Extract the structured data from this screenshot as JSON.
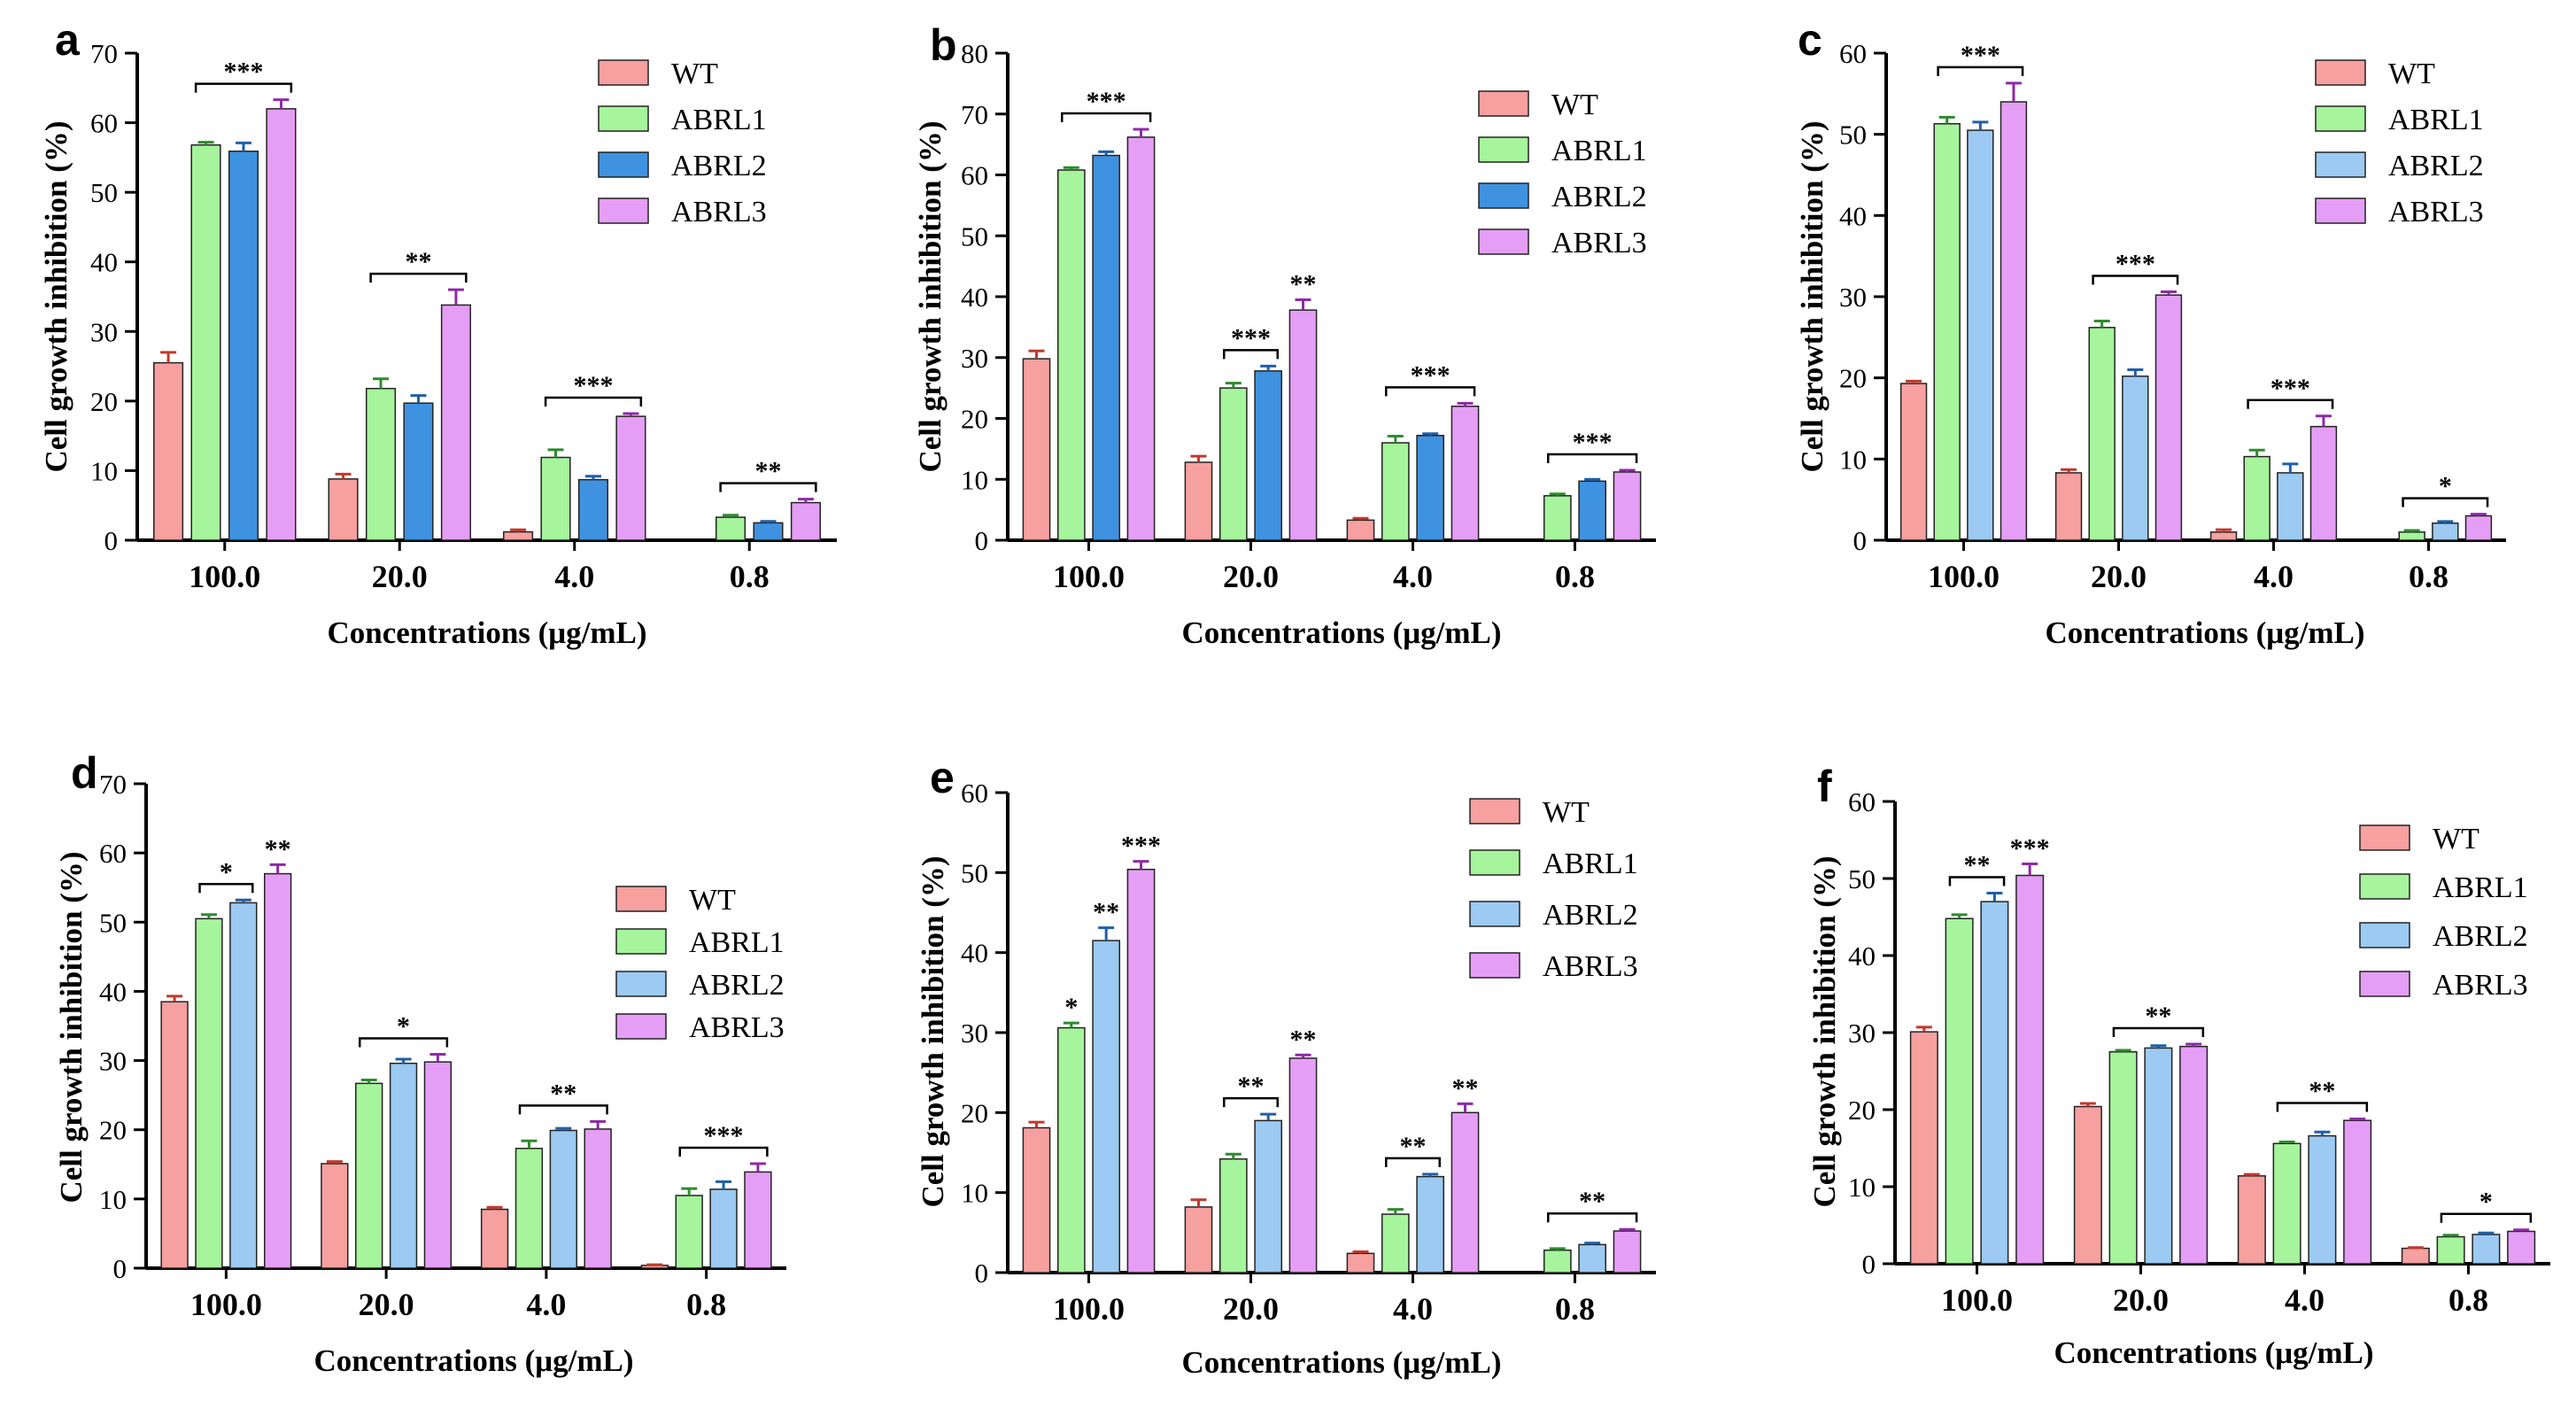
{
  "figure": {
    "colors": {
      "WT": "#f6a0a0",
      "ABRL1": "#a6f49c",
      "ABRL2_dark": "#3f92e0",
      "ABRL2_light": "#9ccaf2",
      "ABRL3": "#e59ef5",
      "WT_err": "#c0392b",
      "ABRL1_err": "#2e8b2e",
      "ABRL2_err": "#1f5fa8",
      "ABRL3_err": "#8e2aa6"
    }
  },
  "chart_data": [
    {
      "panel": "a",
      "type": "bar",
      "categories": [
        "100.0",
        "20.0",
        "4.0",
        "0.8"
      ],
      "xlabel": "Concentrations (μg/mL)",
      "ylabel": "Cell growth inhibition (%)",
      "ylim": [
        0,
        70
      ],
      "yticks": [
        "0",
        "10",
        "20",
        "30",
        "40",
        "50",
        "60",
        "70"
      ],
      "legend": [
        "WT",
        "ABRL1",
        "ABRL2",
        "ABRL3"
      ],
      "abrl2_style": "dark",
      "series": [
        {
          "name": "WT",
          "values": [
            25.5,
            8.8,
            1.2,
            0
          ],
          "errors": [
            1.5,
            0.7,
            0.3,
            0
          ]
        },
        {
          "name": "ABRL1",
          "values": [
            56.8,
            21.8,
            11.9,
            3.3
          ],
          "errors": [
            0.4,
            1.4,
            1.1,
            0.3
          ]
        },
        {
          "name": "ABRL2",
          "values": [
            55.9,
            19.7,
            8.7,
            2.5
          ],
          "errors": [
            1.2,
            1.1,
            0.5,
            0.2
          ]
        },
        {
          "name": "ABRL3",
          "values": [
            62.0,
            33.8,
            17.8,
            5.4
          ],
          "errors": [
            1.3,
            2.2,
            0.4,
            0.5
          ]
        }
      ],
      "significance": [
        "***",
        "**",
        "***",
        "**"
      ]
    },
    {
      "panel": "b",
      "type": "bar",
      "categories": [
        "100.0",
        "20.0",
        "4.0",
        "0.8"
      ],
      "xlabel": "Concentrations (μg/mL)",
      "ylabel": "Cell growth inhibition (%)",
      "ylim": [
        0,
        80
      ],
      "yticks": [
        "0",
        "10",
        "20",
        "30",
        "40",
        "50",
        "60",
        "70",
        "80"
      ],
      "legend": [
        "WT",
        "ABRL1",
        "ABRL2",
        "ABRL3"
      ],
      "abrl2_style": "dark",
      "series": [
        {
          "name": "WT",
          "values": [
            29.8,
            12.8,
            3.3,
            0
          ],
          "errors": [
            1.3,
            1.0,
            0.3,
            0
          ]
        },
        {
          "name": "ABRL1",
          "values": [
            60.8,
            25.0,
            16.0,
            7.3
          ],
          "errors": [
            0.4,
            0.8,
            1.1,
            0.3
          ]
        },
        {
          "name": "ABRL2",
          "values": [
            63.2,
            27.8,
            17.2,
            9.7
          ],
          "errors": [
            0.6,
            0.8,
            0.3,
            0.3
          ]
        },
        {
          "name": "ABRL3",
          "values": [
            66.2,
            37.8,
            22.0,
            11.2
          ],
          "errors": [
            1.3,
            1.7,
            0.5,
            0.3
          ]
        }
      ],
      "significance": [
        "***",
        "***",
        "***",
        "***"
      ],
      "significance_extra": [
        {
          "category_index": 1,
          "label": "**"
        }
      ]
    },
    {
      "panel": "c",
      "type": "bar",
      "categories": [
        "100.0",
        "20.0",
        "4.0",
        "0.8"
      ],
      "xlabel": "Concentrations (μg/mL)",
      "ylabel": "Cell growth inhibition (%)",
      "ylim": [
        0,
        60
      ],
      "yticks": [
        "0",
        "10",
        "20",
        "30",
        "40",
        "50",
        "60"
      ],
      "legend": [
        "WT",
        "ABRL1",
        "ABRL2",
        "ABRL3"
      ],
      "abrl2_style": "light",
      "series": [
        {
          "name": "WT",
          "values": [
            19.3,
            8.3,
            1.0,
            0
          ],
          "errors": [
            0.3,
            0.4,
            0.3,
            0
          ]
        },
        {
          "name": "ABRL1",
          "values": [
            51.3,
            26.2,
            10.3,
            1.0
          ],
          "errors": [
            0.8,
            0.8,
            0.8,
            0.2
          ]
        },
        {
          "name": "ABRL2",
          "values": [
            50.5,
            20.2,
            8.3,
            2.1
          ],
          "errors": [
            1.0,
            0.8,
            1.1,
            0.2
          ]
        },
        {
          "name": "ABRL3",
          "values": [
            54.0,
            30.2,
            14.0,
            3.0
          ],
          "errors": [
            2.3,
            0.4,
            1.3,
            0.2
          ]
        }
      ],
      "significance": [
        "***",
        "***",
        "***",
        "*"
      ]
    },
    {
      "panel": "d",
      "type": "bar",
      "categories": [
        "100.0",
        "20.0",
        "4.0",
        "0.8"
      ],
      "xlabel": "Concentrations (μg/mL)",
      "ylabel": "Cell growth inhibition (%)",
      "ylim": [
        0,
        70
      ],
      "yticks": [
        "0",
        "10",
        "20",
        "30",
        "40",
        "50",
        "60",
        "70"
      ],
      "legend": [
        "WT",
        "ABRL1",
        "ABRL2",
        "ABRL3"
      ],
      "abrl2_style": "light",
      "series": [
        {
          "name": "WT",
          "values": [
            38.5,
            15.1,
            8.5,
            0.4
          ],
          "errors": [
            0.8,
            0.3,
            0.3,
            0.1
          ]
        },
        {
          "name": "ABRL1",
          "values": [
            50.5,
            26.7,
            17.3,
            10.5
          ],
          "errors": [
            0.6,
            0.5,
            1.1,
            1.0
          ]
        },
        {
          "name": "ABRL2",
          "values": [
            52.8,
            29.6,
            19.9,
            11.4
          ],
          "errors": [
            0.4,
            0.6,
            0.3,
            1.1
          ]
        },
        {
          "name": "ABRL3",
          "values": [
            57.0,
            29.8,
            20.1,
            13.9
          ],
          "errors": [
            1.3,
            1.1,
            1.1,
            1.2
          ]
        }
      ],
      "significance": [
        "*",
        "*",
        "**",
        "***"
      ],
      "significance_extra": [
        {
          "category_index": 0,
          "label": "**"
        }
      ]
    },
    {
      "panel": "e",
      "type": "bar",
      "categories": [
        "100.0",
        "20.0",
        "4.0",
        "0.8"
      ],
      "xlabel": "Concentrations (μg/mL)",
      "ylabel": "Cell growth inhibition (%)",
      "ylim": [
        0,
        60
      ],
      "yticks": [
        "0",
        "10",
        "20",
        "30",
        "40",
        "50",
        "60"
      ],
      "legend": [
        "WT",
        "ABRL1",
        "ABRL2",
        "ABRL3"
      ],
      "abrl2_style": "light",
      "series": [
        {
          "name": "WT",
          "values": [
            18.1,
            8.2,
            2.4,
            0
          ],
          "errors": [
            0.7,
            0.9,
            0.2,
            0
          ]
        },
        {
          "name": "ABRL1",
          "values": [
            30.6,
            14.2,
            7.3,
            2.8
          ],
          "errors": [
            0.6,
            0.6,
            0.6,
            0.2
          ]
        },
        {
          "name": "ABRL2",
          "values": [
            41.5,
            19.0,
            12.0,
            3.5
          ],
          "errors": [
            1.6,
            0.8,
            0.3,
            0.2
          ]
        },
        {
          "name": "ABRL3",
          "values": [
            50.4,
            26.8,
            20.0,
            5.2
          ],
          "errors": [
            1.0,
            0.4,
            1.1,
            0.2
          ]
        }
      ],
      "significance": [
        "***",
        "**",
        "**",
        "**"
      ],
      "significance_extra": [
        {
          "category_index": 0,
          "label": "*",
          "series_index": 1
        },
        {
          "category_index": 0,
          "label": "**",
          "series_index": 2
        },
        {
          "category_index": 1,
          "label": "**"
        },
        {
          "category_index": 2,
          "label": "**"
        }
      ]
    },
    {
      "panel": "f",
      "type": "bar",
      "categories": [
        "100.0",
        "20.0",
        "4.0",
        "0.8"
      ],
      "xlabel": "Concentrations (μg/mL)",
      "ylabel": "Cell growth inhibition (%)",
      "ylim": [
        0,
        60
      ],
      "yticks": [
        "0",
        "10",
        "20",
        "30",
        "40",
        "50",
        "60"
      ],
      "legend": [
        "WT",
        "ABRL1",
        "ABRL2",
        "ABRL3"
      ],
      "abrl2_style": "light",
      "series": [
        {
          "name": "WT",
          "values": [
            30.1,
            20.4,
            11.4,
            2.0
          ],
          "errors": [
            0.6,
            0.4,
            0.2,
            0.1
          ]
        },
        {
          "name": "ABRL1",
          "values": [
            44.8,
            27.5,
            15.6,
            3.5
          ],
          "errors": [
            0.5,
            0.2,
            0.2,
            0.2
          ]
        },
        {
          "name": "ABRL2",
          "values": [
            47.0,
            28.0,
            16.6,
            3.8
          ],
          "errors": [
            1.1,
            0.3,
            0.5,
            0.2
          ]
        },
        {
          "name": "ABRL3",
          "values": [
            50.4,
            28.2,
            18.6,
            4.2
          ],
          "errors": [
            1.5,
            0.3,
            0.2,
            0.2
          ]
        }
      ],
      "significance": [
        "**",
        "**",
        "**",
        "*"
      ],
      "significance_extra": [
        {
          "category_index": 0,
          "label": "***"
        }
      ]
    }
  ]
}
